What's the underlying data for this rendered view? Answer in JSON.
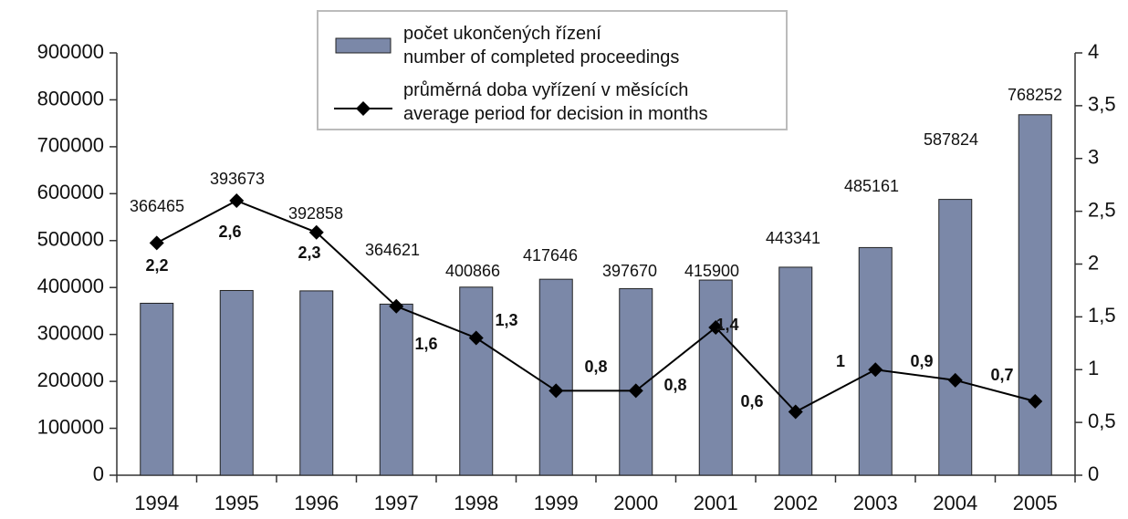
{
  "chart_data": {
    "type": "bar_line",
    "categories": [
      "1994",
      "1995",
      "1996",
      "1997",
      "1998",
      "1999",
      "2000",
      "2001",
      "2002",
      "2003",
      "2004",
      "2005"
    ],
    "series": [
      {
        "name": "počet ukončených řízení\nnumber of completed proceedings",
        "type": "bar",
        "color": "#7b88a8",
        "values": [
          366465,
          393673,
          392858,
          364621,
          400866,
          417646,
          397670,
          415900,
          443341,
          485161,
          587824,
          768252
        ]
      },
      {
        "name": "průměrná doba vyřízení v měsících\naverage period for decision in months",
        "type": "line",
        "color": "#000000",
        "axis": "y2",
        "values": [
          2.2,
          2.6,
          2.3,
          1.6,
          1.3,
          0.8,
          0.8,
          1.4,
          0.6,
          1,
          0.9,
          0.7
        ],
        "value_labels": [
          "2,2",
          "2,6",
          "2,3",
          "1,6",
          "1,3",
          "0,8",
          "0,8",
          "1,4",
          "0,6",
          "1",
          "0,9",
          "0,7"
        ]
      }
    ],
    "ylim": [
      0,
      900000
    ],
    "yticks": [
      0,
      100000,
      200000,
      300000,
      400000,
      500000,
      600000,
      700000,
      800000,
      900000
    ],
    "y2lim": [
      0,
      4
    ],
    "y2ticks": [
      0,
      {
        "value": 0.5,
        "label": "0,5"
      },
      1,
      {
        "value": 1.5,
        "label": "1,5"
      },
      2,
      {
        "value": 2.5,
        "label": "2,5"
      },
      3,
      {
        "value": 3.5,
        "label": "3,5"
      },
      4
    ],
    "legend": "top"
  }
}
